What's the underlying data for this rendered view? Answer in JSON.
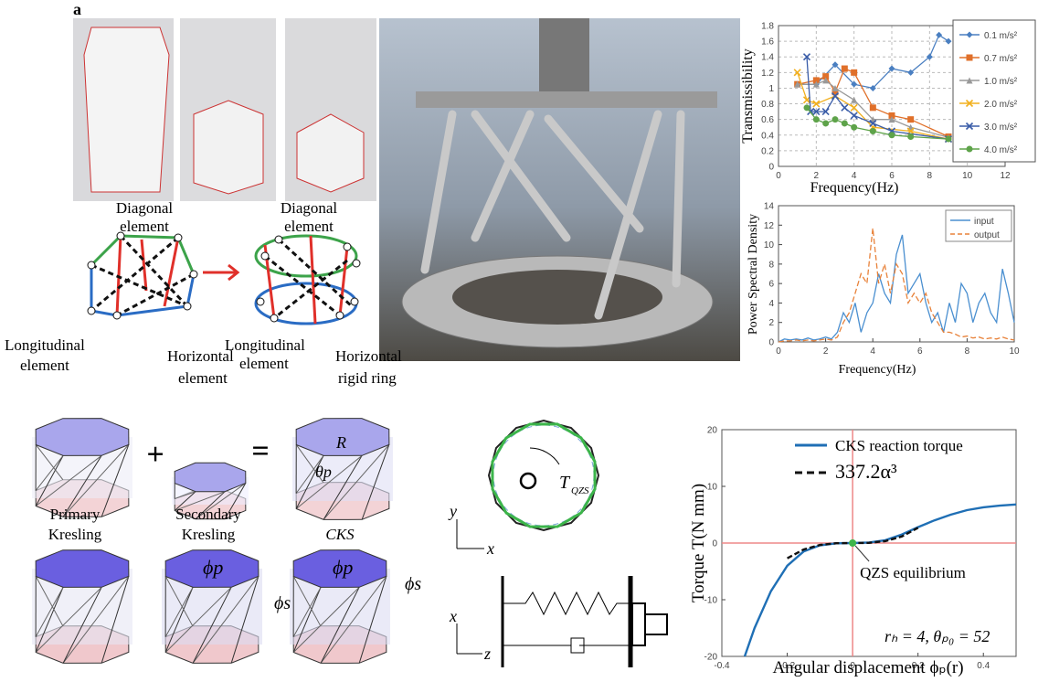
{
  "figure": {
    "panel_label": "a"
  },
  "top_diagram": {
    "left": {
      "diagonal": [
        "Diagonal",
        "element"
      ],
      "longitudinal": [
        "Longitudinal",
        "element"
      ],
      "horizontal": [
        "Horizontal",
        "element"
      ]
    },
    "right": {
      "diagonal": [
        "Diagonal",
        "element"
      ],
      "longitudinal": [
        "Longitudinal",
        "element"
      ],
      "horizontal": [
        "Horizontal",
        "rigid ring"
      ]
    }
  },
  "kresling": {
    "primary": [
      "Primary",
      "Kresling"
    ],
    "secondary": [
      "Secondary",
      "Kresling"
    ],
    "combined": "CKS",
    "plus": "+",
    "equals": "=",
    "theta": "θp",
    "radius": "R",
    "phi_p": [
      "ϕp",
      "ϕp"
    ],
    "phi_s": [
      "ϕs",
      "ϕs"
    ]
  },
  "mechanism": {
    "torque": "T",
    "torque_sub": "QZS",
    "axes_top": [
      "y",
      "x"
    ],
    "axes_bottom": [
      "x",
      "z"
    ]
  },
  "chart_data": [
    {
      "type": "line",
      "ylabel": "Transmissibility",
      "xlabel": "Frequency(Hz)",
      "xlim": [
        0,
        12
      ],
      "xticks": [
        0,
        2,
        4,
        6,
        8,
        10,
        12
      ],
      "ylim": [
        0,
        1.8
      ],
      "yticks": [
        0,
        0.2,
        0.4,
        0.6,
        0.8,
        1,
        1.2,
        1.4,
        1.6,
        1.8
      ],
      "grid": true,
      "legend": "right",
      "series": [
        {
          "name": "0.1 m/s²",
          "color": "#4a7fc1",
          "marker": "diamond",
          "x": [
            1,
            2,
            3,
            4,
            5,
            6,
            7,
            8,
            8.5,
            9
          ],
          "values": [
            1.05,
            1.05,
            1.3,
            1.05,
            1.0,
            1.25,
            1.2,
            1.4,
            1.68,
            1.6
          ]
        },
        {
          "name": "0.7 m/s²",
          "color": "#e0702a",
          "marker": "square",
          "x": [
            1,
            2,
            2.5,
            3,
            3.5,
            4,
            5,
            6,
            7,
            9
          ],
          "values": [
            1.05,
            1.1,
            1.15,
            0.95,
            1.25,
            1.2,
            0.75,
            0.65,
            0.6,
            0.38
          ]
        },
        {
          "name": "1.0 m/s²",
          "color": "#999999",
          "marker": "triangle",
          "x": [
            1,
            2,
            2.5,
            3,
            4,
            5,
            6,
            7,
            9
          ],
          "values": [
            1.05,
            1.05,
            1.1,
            1.0,
            0.85,
            0.6,
            0.6,
            0.5,
            0.37
          ]
        },
        {
          "name": "2.0 m/s²",
          "color": "#f2b01e",
          "marker": "x",
          "x": [
            1,
            1.5,
            2,
            3,
            4,
            5,
            7,
            9
          ],
          "values": [
            1.2,
            0.85,
            0.8,
            0.9,
            0.75,
            0.5,
            0.45,
            0.35
          ]
        },
        {
          "name": "3.0 m/s²",
          "color": "#3a5da8",
          "marker": "x",
          "x": [
            1.5,
            1.7,
            2,
            2.5,
            3,
            3.5,
            4,
            5,
            6,
            9
          ],
          "values": [
            1.4,
            0.7,
            0.7,
            0.7,
            0.9,
            0.75,
            0.65,
            0.55,
            0.45,
            0.35
          ]
        },
        {
          "name": "4.0 m/s²",
          "color": "#5ea34a",
          "marker": "circle",
          "x": [
            1.5,
            2,
            2.5,
            3,
            3.5,
            4,
            5,
            6,
            7,
            9
          ],
          "values": [
            0.75,
            0.6,
            0.55,
            0.6,
            0.55,
            0.5,
            0.45,
            0.4,
            0.38,
            0.35
          ]
        }
      ]
    },
    {
      "type": "line",
      "ylabel": "Power Spectral Density",
      "xlabel": "Frequency(Hz)",
      "xlim": [
        0,
        10
      ],
      "xticks": [
        0,
        2,
        4,
        6,
        8,
        10
      ],
      "ylim": [
        0,
        14
      ],
      "yticks": [
        0,
        2,
        4,
        6,
        8,
        10,
        12,
        14
      ],
      "grid": false,
      "legend": "upper right",
      "x": [
        0,
        0.25,
        0.5,
        0.75,
        1,
        1.25,
        1.5,
        1.75,
        2,
        2.25,
        2.5,
        2.75,
        3,
        3.25,
        3.5,
        3.75,
        4,
        4.25,
        4.5,
        4.75,
        5,
        5.25,
        5.5,
        5.75,
        6,
        6.25,
        6.5,
        6.75,
        7,
        7.25,
        7.5,
        7.75,
        8,
        8.25,
        8.5,
        8.75,
        9,
        9.25,
        9.5,
        9.75,
        10
      ],
      "series": [
        {
          "name": "input",
          "color": "#4a8fd0",
          "dash": false,
          "values": [
            0,
            0.3,
            0.2,
            0.3,
            0.2,
            0.4,
            0.2,
            0.3,
            0.5,
            0.3,
            1,
            3,
            2,
            4,
            1,
            3,
            4,
            7,
            5,
            4,
            9,
            11,
            5,
            6,
            7,
            4,
            2,
            3,
            1,
            4,
            2,
            6,
            5,
            2,
            4,
            5,
            3,
            2,
            7.5,
            5,
            2
          ]
        },
        {
          "name": "output",
          "color": "#e8823a",
          "dash": true,
          "values": [
            0,
            0.1,
            0.1,
            0.2,
            0.1,
            0.2,
            0.1,
            0.2,
            0.3,
            0.2,
            0.5,
            2,
            3,
            5,
            7,
            6,
            11.7,
            6,
            8,
            5,
            8,
            7,
            4,
            5,
            4,
            5,
            3,
            2,
            1,
            1,
            0.8,
            0.5,
            0.6,
            0.4,
            0.5,
            0.3,
            0.4,
            0.3,
            0.5,
            0.3,
            0.2
          ]
        }
      ]
    },
    {
      "type": "line",
      "ylabel": "Torque T(N mm)",
      "xlabel": "Angular displacement ϕₚ(r)",
      "xlim": [
        -0.4,
        0.5
      ],
      "xticks": [
        -0.4,
        -0.2,
        0,
        0.2,
        0.4
      ],
      "ylim": [
        -20,
        20
      ],
      "yticks": [
        -20,
        -10,
        0,
        10,
        20
      ],
      "grid": false,
      "legend": "top",
      "annotation": {
        "text": "QZS equilibrium",
        "x": 0,
        "y": 0
      },
      "note": "rₕ = 4, θₚ₀ = 52",
      "series": [
        {
          "name": "CKS reaction torque",
          "color": "#1f6fb5",
          "dash": false,
          "x": [
            -0.33,
            -0.3,
            -0.25,
            -0.2,
            -0.15,
            -0.1,
            -0.05,
            0,
            0.05,
            0.1,
            0.15,
            0.2,
            0.25,
            0.3,
            0.35,
            0.4,
            0.45,
            0.5
          ],
          "values": [
            -20,
            -15,
            -8.5,
            -4,
            -1.5,
            -0.4,
            -0.05,
            0,
            0.1,
            0.5,
            1.5,
            2.8,
            4,
            5,
            5.8,
            6.3,
            6.6,
            6.8
          ]
        },
        {
          "name": "337.2α³",
          "color": "#111111",
          "dash": true,
          "x": [
            -0.2,
            -0.15,
            -0.1,
            -0.05,
            0,
            0.05,
            0.1,
            0.15,
            0.2
          ],
          "values": [
            -2.7,
            -1.14,
            -0.34,
            -0.04,
            0,
            0.04,
            0.34,
            1.14,
            2.7
          ]
        }
      ]
    }
  ]
}
